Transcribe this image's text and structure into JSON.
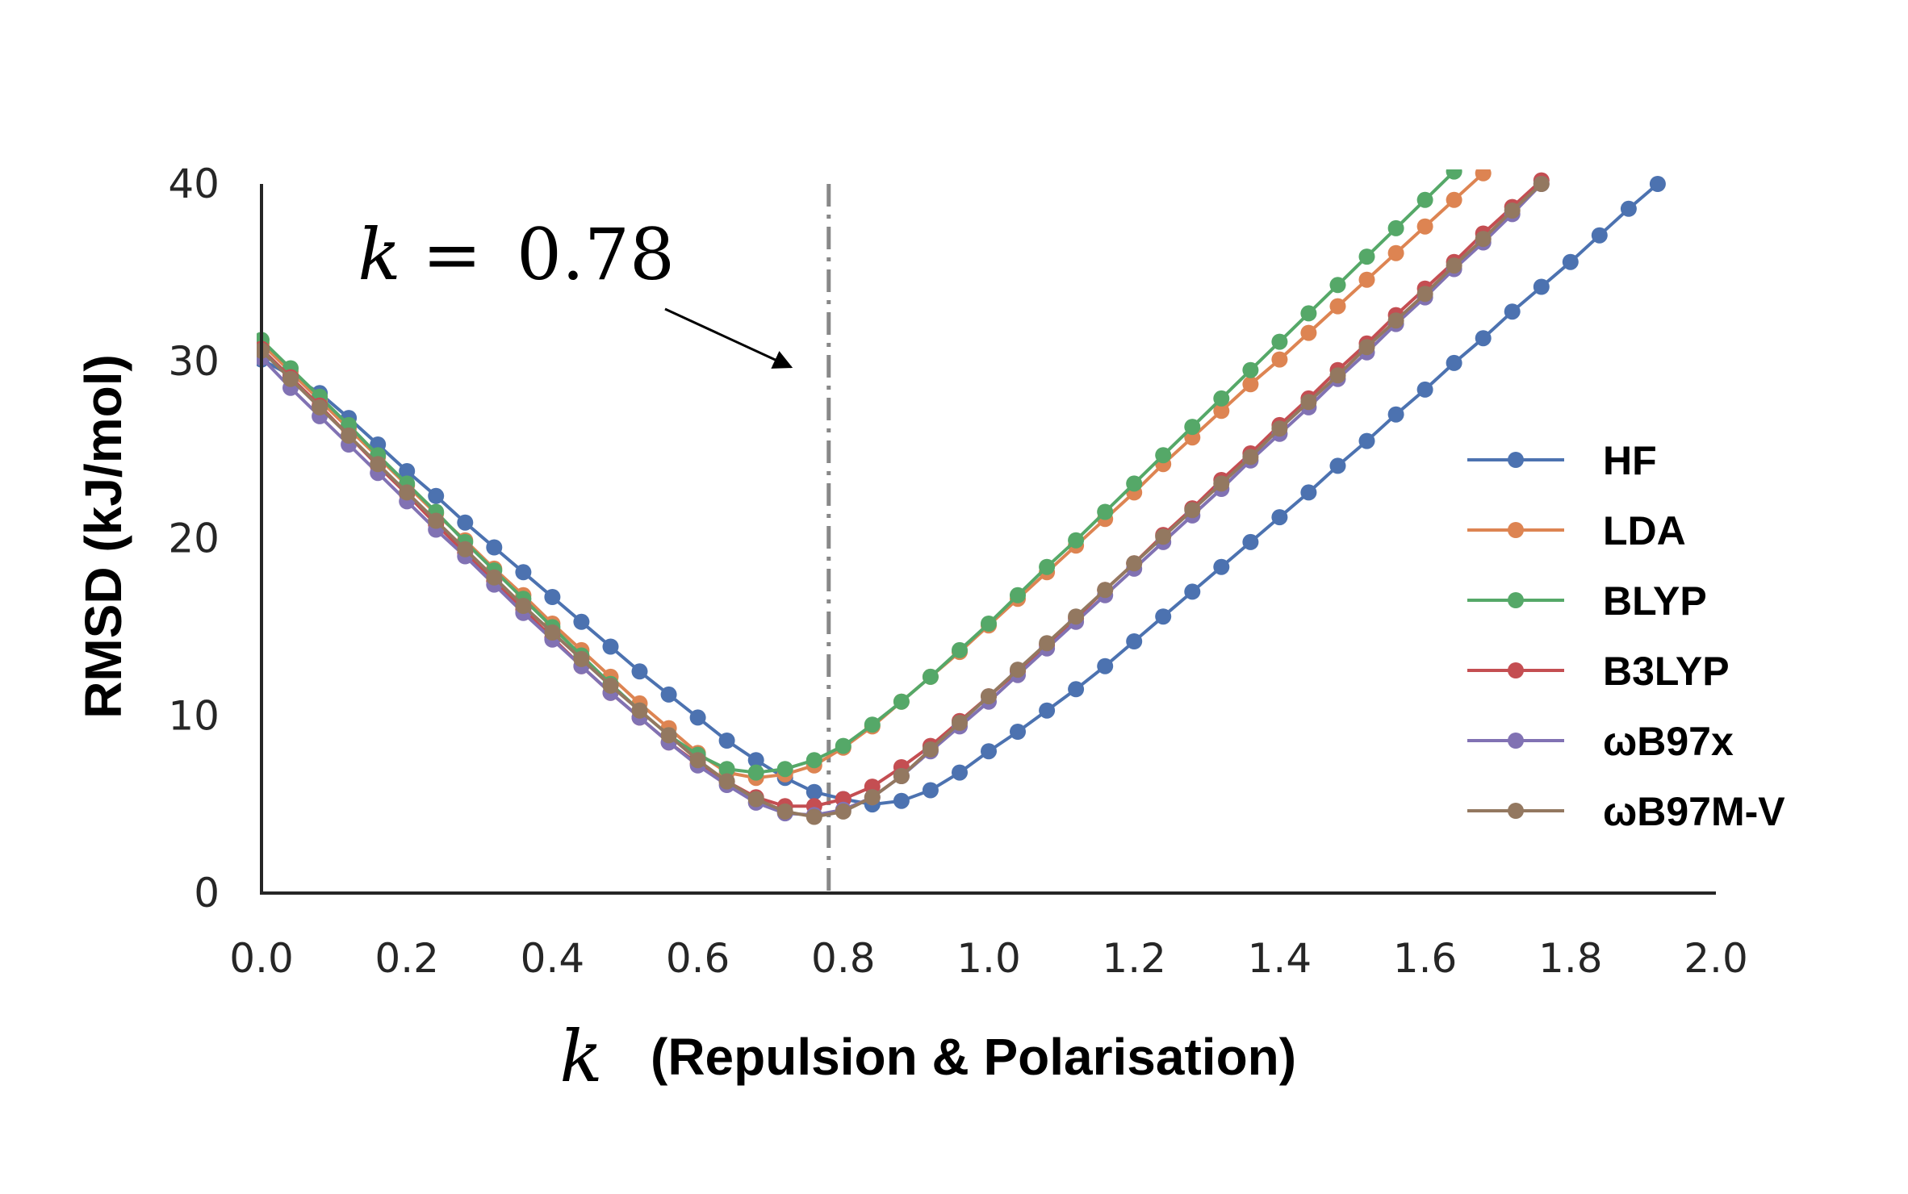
{
  "chart_data": {
    "type": "line",
    "title": "",
    "xlabel_symbol": "k",
    "xlabel": "(Repulsion & Polarisation)",
    "ylabel": "RMSD (kJ/mol)",
    "xlim": [
      0.0,
      2.0
    ],
    "ylim": [
      0,
      40
    ],
    "xticks": [
      "0.0",
      "0.2",
      "0.4",
      "0.6",
      "0.8",
      "1.0",
      "1.2",
      "1.4",
      "1.6",
      "1.8",
      "2.0"
    ],
    "yticks": [
      "0",
      "10",
      "20",
      "30",
      "40"
    ],
    "grid": false,
    "legend_position": "right",
    "annotation": {
      "symbol": "k",
      "equals": "=",
      "value": "0.78",
      "x_line": 0.78
    },
    "x_step": 0.04,
    "series": [
      {
        "name": "HF",
        "color": "#4c72b0",
        "values": [
          30.1,
          29.2,
          28.2,
          26.8,
          25.3,
          23.8,
          22.4,
          20.9,
          19.5,
          18.1,
          16.7,
          15.3,
          13.9,
          12.5,
          11.2,
          9.9,
          8.6,
          7.5,
          6.5,
          5.7,
          5.3,
          5.0,
          5.2,
          5.8,
          6.8,
          8.0,
          9.1,
          10.3,
          11.5,
          12.8,
          14.2,
          15.6,
          17.0,
          18.4,
          19.8,
          21.2,
          22.6,
          24.1,
          25.5,
          27.0,
          28.4,
          29.9,
          31.3,
          32.8,
          34.2,
          35.6,
          37.1,
          38.6,
          40.0
        ]
      },
      {
        "name": "LDA",
        "color": "#dd8452",
        "values": [
          31.0,
          29.4,
          27.8,
          26.2,
          24.6,
          23.0,
          21.4,
          19.9,
          18.3,
          16.8,
          15.2,
          13.7,
          12.2,
          10.7,
          9.3,
          7.9,
          6.8,
          6.5,
          6.7,
          7.2,
          8.2,
          9.4,
          10.8,
          12.2,
          13.6,
          15.1,
          16.6,
          18.1,
          19.6,
          21.1,
          22.6,
          24.2,
          25.7,
          27.2,
          28.7,
          30.1,
          31.6,
          33.1,
          34.6,
          36.1,
          37.6,
          39.1,
          40.6
        ]
      },
      {
        "name": "BLYP",
        "color": "#55a868",
        "values": [
          31.2,
          29.6,
          28.0,
          26.4,
          24.7,
          23.1,
          21.5,
          19.8,
          18.2,
          16.6,
          15.0,
          13.4,
          11.8,
          10.3,
          8.9,
          7.8,
          7.0,
          6.8,
          7.0,
          7.5,
          8.3,
          9.5,
          10.8,
          12.2,
          13.7,
          15.2,
          16.8,
          18.4,
          19.9,
          21.5,
          23.1,
          24.7,
          26.3,
          27.9,
          29.5,
          31.1,
          32.7,
          34.3,
          35.9,
          37.5,
          39.1,
          40.7
        ]
      },
      {
        "name": "B3LYP",
        "color": "#c44e52",
        "values": [
          30.7,
          29.1,
          27.5,
          25.8,
          24.1,
          22.5,
          20.8,
          19.2,
          17.6,
          16.0,
          14.4,
          12.8,
          11.3,
          9.9,
          8.5,
          7.3,
          6.3,
          5.4,
          4.9,
          4.9,
          5.3,
          6.0,
          7.1,
          8.3,
          9.7,
          11.1,
          12.5,
          14.0,
          15.5,
          17.1,
          18.6,
          20.2,
          21.7,
          23.3,
          24.8,
          26.4,
          27.9,
          29.5,
          31.0,
          32.6,
          34.1,
          35.6,
          37.2,
          38.7,
          40.2
        ]
      },
      {
        "name": "ωB97x",
        "color": "#8172b3",
        "values": [
          30.2,
          28.5,
          26.9,
          25.3,
          23.7,
          22.1,
          20.5,
          19.0,
          17.4,
          15.8,
          14.3,
          12.8,
          11.3,
          9.9,
          8.5,
          7.2,
          6.1,
          5.1,
          4.5,
          4.4,
          4.7,
          5.4,
          6.6,
          8.0,
          9.4,
          10.8,
          12.3,
          13.8,
          15.3,
          16.8,
          18.3,
          19.8,
          21.3,
          22.8,
          24.4,
          25.9,
          27.4,
          29.0,
          30.5,
          32.1,
          33.6,
          35.2,
          36.7,
          38.3,
          40.0
        ]
      },
      {
        "name": "ωB97M-V",
        "color": "#937860",
        "values": [
          30.6,
          29.0,
          27.4,
          25.8,
          24.2,
          22.6,
          21.0,
          19.4,
          17.8,
          16.2,
          14.7,
          13.2,
          11.7,
          10.3,
          8.9,
          7.5,
          6.3,
          5.3,
          4.6,
          4.3,
          4.6,
          5.4,
          6.6,
          8.1,
          9.6,
          11.1,
          12.6,
          14.1,
          15.6,
          17.1,
          18.6,
          20.1,
          21.6,
          23.1,
          24.6,
          26.2,
          27.7,
          29.2,
          30.8,
          32.3,
          33.8,
          35.4,
          36.9,
          38.5,
          40.0
        ]
      }
    ]
  }
}
